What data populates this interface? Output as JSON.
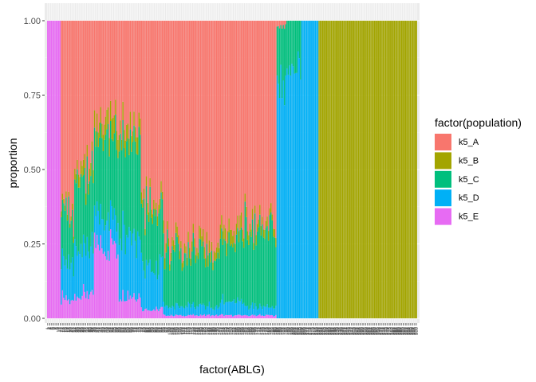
{
  "chart_data": {
    "type": "bar",
    "stacked": true,
    "xlabel": "factor(ABLG)",
    "ylabel": "proportion",
    "ylim": [
      0,
      1
    ],
    "yticks": [
      "0.00",
      "0.25",
      "0.50",
      "0.75",
      "1.00"
    ],
    "ytick_values": [
      0,
      0.25,
      0.5,
      0.75,
      1
    ],
    "grid": true,
    "legend": {
      "title": "factor(population)",
      "placement": "right",
      "entries": [
        {
          "name": "k5_A",
          "color": "#F8766D"
        },
        {
          "name": "k5_B",
          "color": "#A3A500"
        },
        {
          "name": "k5_C",
          "color": "#00BF7D"
        },
        {
          "name": "k5_D",
          "color": "#00B0F6"
        },
        {
          "name": "k5_E",
          "color": "#E76BF3"
        }
      ]
    },
    "categories": [
      "1",
      "2",
      "3",
      "4",
      "5",
      "6",
      "7",
      "8",
      "9",
      "10",
      "11",
      "12",
      "13",
      "14",
      "15",
      "16",
      "17",
      "18",
      "19",
      "20",
      "21",
      "22",
      "23",
      "24",
      "25",
      "26",
      "27",
      "28",
      "29",
      "30",
      "31",
      "32",
      "33",
      "34",
      "35",
      "36",
      "37",
      "38",
      "39",
      "40",
      "41",
      "42",
      "43",
      "44",
      "45",
      "46",
      "47",
      "48",
      "49",
      "50",
      "51",
      "52",
      "53",
      "54",
      "55",
      "56",
      "57",
      "58",
      "59",
      "60",
      "61",
      "62",
      "63",
      "64",
      "65",
      "66",
      "67",
      "68",
      "69",
      "70",
      "71",
      "72",
      "73",
      "74",
      "75",
      "76",
      "77",
      "78",
      "79",
      "80",
      "81",
      "82",
      "83",
      "84",
      "85",
      "86",
      "87",
      "88",
      "89",
      "90",
      "91",
      "92",
      "93",
      "94",
      "95",
      "96",
      "97",
      "98",
      "99",
      "100",
      "101",
      "102",
      "103",
      "104",
      "105",
      "106",
      "107",
      "108",
      "109",
      "110",
      "111",
      "112",
      "113",
      "114",
      "115",
      "116",
      "117",
      "118",
      "119",
      "120",
      "121",
      "122",
      "123",
      "124",
      "125",
      "126",
      "127",
      "128",
      "129",
      "130",
      "131",
      "132",
      "133",
      "134",
      "135",
      "136",
      "137",
      "138",
      "139",
      "140",
      "141",
      "142",
      "143",
      "144",
      "145",
      "146",
      "147",
      "148",
      "149",
      "150",
      "151",
      "152",
      "153",
      "154",
      "155",
      "156",
      "157",
      "158",
      "159",
      "160",
      "161",
      "162",
      "163",
      "164",
      "165",
      "166",
      "167",
      "168",
      "169",
      "170",
      "171",
      "172",
      "173",
      "174",
      "175",
      "176",
      "177",
      "178",
      "179",
      "180",
      "181",
      "182",
      "183",
      "184",
      "185",
      "186",
      "187",
      "188",
      "189",
      "190",
      "191",
      "192",
      "193",
      "194",
      "195",
      "196",
      "197",
      "198",
      "199",
      "200",
      "201",
      "202",
      "203",
      "204",
      "205",
      "206",
      "207",
      "208",
      "209",
      "210",
      "211",
      "212",
      "213",
      "214",
      "215",
      "216",
      "217",
      "218",
      "219",
      "220",
      "221",
      "222",
      "223",
      "224",
      "225",
      "226",
      "227",
      "228",
      "229",
      "230",
      "231",
      "232",
      "233",
      "234",
      "235",
      "236",
      "237",
      "238",
      "239",
      "240",
      "241",
      "242",
      "243",
      "244",
      "245",
      "246",
      "247",
      "248",
      "249",
      "250",
      "251",
      "252",
      "253",
      "254",
      "255",
      "256",
      "257",
      "258",
      "259",
      "260",
      "261",
      "262",
      "263",
      "264",
      "265",
      "266",
      "267",
      "268",
      "269",
      "270",
      "271",
      "272",
      "273",
      "274",
      "275",
      "276",
      "277",
      "278",
      "279",
      "280",
      "281",
      "282",
      "283",
      "284",
      "285",
      "286",
      "287",
      "288",
      "289",
      "290",
      "291",
      "292",
      "293",
      "294",
      "295",
      "296",
      "297",
      "298",
      "299",
      "300"
    ],
    "segments": [
      {
        "from": 1,
        "to": 11,
        "composition": {
          "k5_E": 1.0
        }
      },
      {
        "from": 12,
        "to": 22,
        "composition": {
          "k5_A": 0.64,
          "k5_B": 0.02,
          "k5_C": 0.16,
          "k5_D": 0.12,
          "k5_E": 0.06
        }
      },
      {
        "from": 23,
        "to": 38,
        "composition": {
          "k5_A": 0.48,
          "k5_B": 0.04,
          "k5_C": 0.24,
          "k5_D": 0.16,
          "k5_E": 0.08
        }
      },
      {
        "from": 39,
        "to": 58,
        "composition": {
          "k5_A": 0.34,
          "k5_B": 0.06,
          "k5_C": 0.26,
          "k5_D": 0.1,
          "k5_E": 0.24
        }
      },
      {
        "from": 59,
        "to": 76,
        "composition": {
          "k5_A": 0.36,
          "k5_B": 0.05,
          "k5_C": 0.3,
          "k5_D": 0.21,
          "k5_E": 0.08
        }
      },
      {
        "from": 77,
        "to": 94,
        "composition": {
          "k5_A": 0.62,
          "k5_B": 0.03,
          "k5_C": 0.18,
          "k5_D": 0.14,
          "k5_E": 0.03
        }
      },
      {
        "from": 95,
        "to": 140,
        "composition": {
          "k5_A": 0.75,
          "k5_B": 0.03,
          "k5_C": 0.18,
          "k5_D": 0.03,
          "k5_E": 0.01
        }
      },
      {
        "from": 141,
        "to": 160,
        "composition": {
          "k5_A": 0.7,
          "k5_B": 0.04,
          "k5_C": 0.2,
          "k5_D": 0.05,
          "k5_E": 0.01
        }
      },
      {
        "from": 161,
        "to": 186,
        "composition": {
          "k5_A": 0.67,
          "k5_B": 0.03,
          "k5_C": 0.26,
          "k5_D": 0.03,
          "k5_E": 0.01
        }
      },
      {
        "from": 187,
        "to": 194,
        "composition": {
          "k5_A": 0.02,
          "k5_C": 0.18,
          "k5_D": 0.8
        }
      },
      {
        "from": 195,
        "to": 206,
        "composition": {
          "k5_C": 0.15,
          "k5_D": 0.85
        }
      },
      {
        "from": 207,
        "to": 220,
        "composition": {
          "k5_D": 1.0
        }
      },
      {
        "from": 221,
        "to": 300,
        "composition": {
          "k5_B": 1.0
        }
      }
    ]
  }
}
